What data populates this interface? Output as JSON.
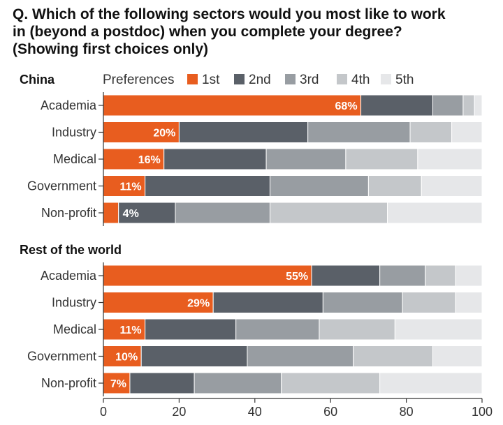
{
  "title": "Q. Which of the following sectors would you most like to work in (beyond a postdoc) when you complete your degree? (Showing first choices only)",
  "legend": {
    "title": "Preferences",
    "items": [
      {
        "label": "1st",
        "color": "#e85d1f"
      },
      {
        "label": "2nd",
        "color": "#5a6068"
      },
      {
        "label": "3rd",
        "color": "#989da2"
      },
      {
        "label": "4th",
        "color": "#c4c7ca"
      },
      {
        "label": "5th",
        "color": "#e6e7e9"
      }
    ]
  },
  "chart_data": {
    "type": "bar",
    "orientation": "horizontal",
    "stacked": true,
    "xlim": [
      0,
      100
    ],
    "xticks": [
      0,
      20,
      40,
      60,
      80,
      100
    ],
    "grid": false,
    "panels": [
      {
        "name": "China",
        "categories": [
          "Academia",
          "Industry",
          "Medical",
          "Government",
          "Non-profit"
        ],
        "series": [
          {
            "name": "1st",
            "values": [
              68,
              20,
              16,
              11,
              4
            ]
          },
          {
            "name": "2nd",
            "values": [
              19,
              34,
              27,
              33,
              15
            ]
          },
          {
            "name": "3rd",
            "values": [
              8,
              27,
              21,
              26,
              25
            ]
          },
          {
            "name": "4th",
            "values": [
              3,
              11,
              19,
              14,
              31
            ]
          },
          {
            "name": "5th",
            "values": [
              2,
              8,
              17,
              16,
              25
            ]
          }
        ],
        "labels": [
          "68%",
          "20%",
          "16%",
          "11%",
          "4%"
        ]
      },
      {
        "name": "Rest of the world",
        "categories": [
          "Academia",
          "Industry",
          "Medical",
          "Government",
          "Non-profit"
        ],
        "series": [
          {
            "name": "1st",
            "values": [
              55,
              29,
              11,
              10,
              7
            ]
          },
          {
            "name": "2nd",
            "values": [
              18,
              29,
              24,
              28,
              17
            ]
          },
          {
            "name": "3rd",
            "values": [
              12,
              21,
              22,
              28,
              23
            ]
          },
          {
            "name": "4th",
            "values": [
              8,
              14,
              20,
              21,
              26
            ]
          },
          {
            "name": "5th",
            "values": [
              7,
              7,
              23,
              13,
              27
            ]
          }
        ],
        "labels": [
          "55%",
          "29%",
          "11%",
          "10%",
          "7%"
        ]
      }
    ]
  }
}
